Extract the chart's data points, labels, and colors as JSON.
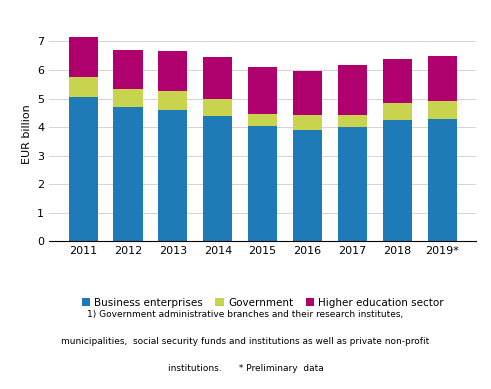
{
  "years": [
    "2011",
    "2012",
    "2013",
    "2014",
    "2015",
    "2016",
    "2017",
    "2018",
    "2019*"
  ],
  "business": [
    5.05,
    4.7,
    4.6,
    4.4,
    4.05,
    3.9,
    4.02,
    4.25,
    4.3
  ],
  "government": [
    0.7,
    0.65,
    0.65,
    0.6,
    0.42,
    0.52,
    0.42,
    0.6,
    0.62
  ],
  "higher_education": [
    1.4,
    1.35,
    1.4,
    1.45,
    1.62,
    1.55,
    1.75,
    1.55,
    1.57
  ],
  "colors": {
    "business": "#1f7bb8",
    "government": "#c8d44e",
    "higher_education": "#b0006e"
  },
  "ylabel": "EUR billion",
  "ylim": [
    0,
    7.5
  ],
  "yticks": [
    0,
    1,
    2,
    3,
    4,
    5,
    6,
    7
  ],
  "legend_labels": [
    "Business enterprises",
    "Government",
    "Higher education sector"
  ],
  "footnote1": "1) Government administrative branches and their research institutes,",
  "footnote2": "municipalities,  social security funds and institutions as well as private non-profit",
  "footnote3": "institutions.      * Preliminary  data"
}
